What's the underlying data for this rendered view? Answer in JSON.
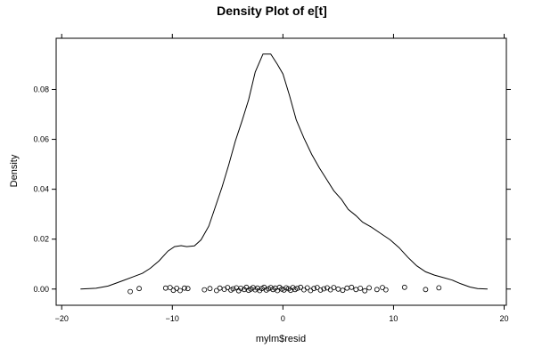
{
  "chart_data": {
    "type": "line",
    "title": "Density Plot of e[t]",
    "xlabel": "mylm$resid",
    "ylabel": "Density",
    "xlim": [
      -20.5,
      20.2
    ],
    "ylim": [
      -0.0065,
      0.1005
    ],
    "x_ticks": [
      -20,
      -10,
      0,
      10,
      20
    ],
    "x_tick_labels": [
      "−20",
      "−10",
      "0",
      "10",
      "20"
    ],
    "y_ticks": [
      0.0,
      0.02,
      0.04,
      0.06,
      0.08
    ],
    "y_tick_labels": [
      "0.00",
      "0.02",
      "0.04",
      "0.06",
      "0.08"
    ],
    "grid": false,
    "series": [
      {
        "style": "line",
        "color": "#000000",
        "x": [
          -18.3,
          -16.9,
          -15.8,
          -14.5,
          -13.5,
          -12.7,
          -12.0,
          -11.2,
          -10.4,
          -9.8,
          -9.2,
          -8.7,
          -8.0,
          -7.4,
          -6.7,
          -6.1,
          -5.5,
          -4.9,
          -4.3,
          -3.7,
          -3.1,
          -2.5,
          -1.8,
          -1.1,
          -0.5,
          0.0,
          0.6,
          1.2,
          1.9,
          2.6,
          3.3,
          4.0,
          4.6,
          5.3,
          5.9,
          6.6,
          7.2,
          8.0,
          8.8,
          9.7,
          10.5,
          11.3,
          12.1,
          12.9,
          13.7,
          14.5,
          15.3,
          16.1,
          16.9,
          17.6,
          18.5
        ],
        "y": [
          0.0,
          0.0003,
          0.0012,
          0.0033,
          0.005,
          0.0063,
          0.0083,
          0.0113,
          0.0152,
          0.017,
          0.0174,
          0.017,
          0.0173,
          0.0197,
          0.0252,
          0.0331,
          0.0409,
          0.0498,
          0.0593,
          0.0674,
          0.0759,
          0.087,
          0.0942,
          0.0942,
          0.09,
          0.0862,
          0.0775,
          0.0678,
          0.0605,
          0.054,
          0.0485,
          0.0436,
          0.0394,
          0.0359,
          0.0319,
          0.0294,
          0.0268,
          0.0248,
          0.0224,
          0.0197,
          0.0166,
          0.0127,
          0.0093,
          0.0069,
          0.0056,
          0.0046,
          0.0036,
          0.0021,
          0.0008,
          0.0002,
          0.0
        ]
      },
      {
        "style": "rug_points",
        "color": "#000000",
        "x": [
          -13.8,
          -13.0,
          -10.6,
          -10.2,
          -9.9,
          -9.6,
          -9.3,
          -8.9,
          -8.6,
          -7.1,
          -6.6,
          -6.0,
          -5.7,
          -5.3,
          -5.0,
          -4.7,
          -4.5,
          -4.2,
          -4.0,
          -3.8,
          -3.5,
          -3.3,
          -3.1,
          -2.9,
          -2.7,
          -2.5,
          -2.3,
          -2.1,
          -1.9,
          -1.7,
          -1.5,
          -1.3,
          -1.1,
          -0.9,
          -0.7,
          -0.5,
          -0.3,
          -0.1,
          0.1,
          0.3,
          0.5,
          0.7,
          0.9,
          1.1,
          1.3,
          1.6,
          1.9,
          2.2,
          2.5,
          2.8,
          3.1,
          3.4,
          3.7,
          4.0,
          4.3,
          4.6,
          5.0,
          5.4,
          5.8,
          6.2,
          6.6,
          7.0,
          7.4,
          7.8,
          8.5,
          9.0,
          9.3,
          11.0,
          12.9,
          14.1
        ],
        "y": [
          -0.001,
          0.0002,
          0.0004,
          0.0006,
          -0.0005,
          0.0003,
          -0.0006,
          0.0004,
          0.0002,
          -0.0003,
          0.0002,
          -0.0006,
          0.0004,
          -0.0001,
          0.0006,
          -0.0004,
          0.0001,
          0.0005,
          -0.0007,
          0.0003,
          -0.0002,
          0.0007,
          -0.0005,
          0.0,
          0.0006,
          -0.0003,
          0.0004,
          -0.0006,
          0.0002,
          0.0007,
          -0.0004,
          0.0001,
          0.0006,
          -0.0002,
          0.0004,
          -0.0006,
          0.0007,
          0.0,
          -0.0004,
          0.0005,
          0.0001,
          -0.0005,
          0.0006,
          -0.0002,
          0.0003,
          0.0007,
          -0.0003,
          0.0005,
          -0.0006,
          0.0002,
          0.0006,
          -0.0004,
          0.0001,
          0.0005,
          -0.0003,
          0.0006,
          0.0,
          -0.0005,
          0.0004,
          0.0007,
          -0.0002,
          0.0003,
          -0.0007,
          0.0005,
          -0.0002,
          0.0006,
          -0.0003,
          0.0007,
          -0.0002,
          0.0005
        ]
      }
    ]
  }
}
